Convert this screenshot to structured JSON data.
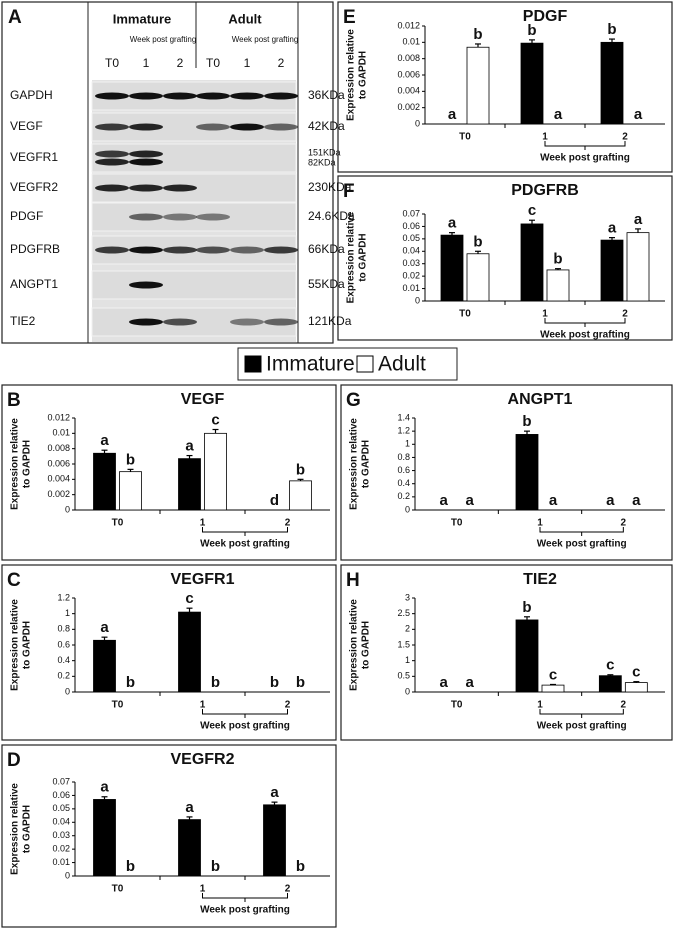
{
  "blot": {
    "panel": "A",
    "groups": [
      "Immature",
      "Adult"
    ],
    "week_label": "Week post grafting",
    "lanes": [
      "T0",
      "1",
      "2",
      "T0",
      "1",
      "2"
    ],
    "rows": [
      {
        "protein": "GAPDH",
        "size": [
          "36KDa"
        ]
      },
      {
        "protein": "VEGF",
        "size": [
          "42KDa"
        ]
      },
      {
        "protein": "VEGFR1",
        "size": [
          "151KDa",
          "82KDa"
        ]
      },
      {
        "protein": "VEGFR2",
        "size": [
          "230KDa"
        ]
      },
      {
        "protein": "PDGF",
        "size": [
          "24.6KDa"
        ]
      },
      {
        "protein": "PDGFRB",
        "size": [
          "66KDa"
        ]
      },
      {
        "protein": "ANGPT1",
        "size": [
          "55KDa"
        ]
      },
      {
        "protein": "TIE2",
        "size": [
          "121KDa"
        ]
      }
    ]
  },
  "legend": [
    {
      "name": "Immature",
      "color": "#000000"
    },
    {
      "name": "Adult",
      "color": "#ffffff"
    }
  ],
  "chart_data": [
    {
      "type": "bar",
      "panel": "B",
      "title": "VEGF",
      "ylabel": [
        "Expression relative",
        "to GAPDH"
      ],
      "xlabel": "Week post grafting",
      "categories": [
        "T0",
        "1",
        "2"
      ],
      "ylim": [
        0,
        0.012
      ],
      "yticks": [
        0,
        0.002,
        0.004,
        0.006,
        0.008,
        0.01,
        0.012
      ],
      "series": [
        {
          "values": [
            0.0074,
            0.0067,
            0
          ],
          "errors": [
            0.0004,
            0.0004,
            0
          ],
          "letters": [
            "a",
            "a",
            "d"
          ]
        },
        {
          "values": [
            0.005,
            0.01,
            0.0038
          ],
          "errors": [
            0.0003,
            0.0005,
            0.0002
          ],
          "letters": [
            "b",
            "c",
            "b"
          ]
        }
      ]
    },
    {
      "type": "bar",
      "panel": "C",
      "title": "VEGFR1",
      "ylabel": [
        "Expression relative",
        "to GAPDH"
      ],
      "xlabel": "Week post grafting",
      "categories": [
        "T0",
        "1",
        "2"
      ],
      "ylim": [
        0,
        1.2
      ],
      "yticks": [
        0,
        0.2,
        0.4,
        0.6,
        0.8,
        1,
        1.2
      ],
      "series": [
        {
          "values": [
            0.66,
            1.02,
            0
          ],
          "errors": [
            0.04,
            0.05,
            0
          ],
          "letters": [
            "a",
            "c",
            "b"
          ]
        },
        {
          "values": [
            0,
            0,
            0
          ],
          "errors": [
            0,
            0,
            0
          ],
          "letters": [
            "b",
            "b",
            "b"
          ]
        }
      ]
    },
    {
      "type": "bar",
      "panel": "D",
      "title": "VEGFR2",
      "ylabel": [
        "Expression relative",
        "to GAPDH"
      ],
      "xlabel": "Week post grafting",
      "categories": [
        "T0",
        "1",
        "2"
      ],
      "ylim": [
        0,
        0.07
      ],
      "yticks": [
        0,
        0.01,
        0.02,
        0.03,
        0.04,
        0.05,
        0.06,
        0.07
      ],
      "series": [
        {
          "values": [
            0.057,
            0.042,
            0.053
          ],
          "errors": [
            0.002,
            0.002,
            0.002
          ],
          "letters": [
            "a",
            "a",
            "a"
          ]
        },
        {
          "values": [
            0,
            0,
            0
          ],
          "errors": [
            0,
            0,
            0
          ],
          "letters": [
            "b",
            "b",
            "b"
          ]
        }
      ]
    },
    {
      "type": "bar",
      "panel": "E",
      "title": "PDGF",
      "ylabel": [
        "Expression relative",
        "to GAPDH"
      ],
      "xlabel": "Week post grafting",
      "categories": [
        "T0",
        "1",
        "2"
      ],
      "ylim": [
        0,
        0.012
      ],
      "yticks": [
        0,
        0.002,
        0.004,
        0.006,
        0.008,
        0.01,
        0.012
      ],
      "series": [
        {
          "values": [
            0,
            0.0099,
            0.01
          ],
          "errors": [
            0,
            0.0004,
            0.0004
          ],
          "letters": [
            "a",
            "b",
            "b"
          ]
        },
        {
          "values": [
            0.0094,
            0,
            0
          ],
          "errors": [
            0.0004,
            0,
            0
          ],
          "letters": [
            "b",
            "a",
            "a"
          ]
        }
      ]
    },
    {
      "type": "bar",
      "panel": "F",
      "title": "PDGFRB",
      "ylabel": [
        "Expression relative",
        "to GAPDH"
      ],
      "xlabel": "Week post grafting",
      "categories": [
        "T0",
        "1",
        "2"
      ],
      "ylim": [
        0,
        0.07
      ],
      "yticks": [
        0,
        0.01,
        0.02,
        0.03,
        0.04,
        0.05,
        0.06,
        0.07
      ],
      "series": [
        {
          "values": [
            0.053,
            0.062,
            0.049
          ],
          "errors": [
            0.002,
            0.003,
            0.002
          ],
          "letters": [
            "a",
            "c",
            "a"
          ]
        },
        {
          "values": [
            0.038,
            0.025,
            0.055
          ],
          "errors": [
            0.002,
            0.001,
            0.003
          ],
          "letters": [
            "b",
            "b",
            "a"
          ]
        }
      ]
    },
    {
      "type": "bar",
      "panel": "G",
      "title": "ANGPT1",
      "ylabel": [
        "Expression relative",
        "to GAPDH"
      ],
      "xlabel": "Week post grafting",
      "categories": [
        "T0",
        "1",
        "2"
      ],
      "ylim": [
        0,
        1.4
      ],
      "yticks": [
        0,
        0.2,
        0.4,
        0.6,
        0.8,
        1,
        1.2,
        1.4
      ],
      "series": [
        {
          "values": [
            0,
            1.15,
            0
          ],
          "errors": [
            0,
            0.05,
            0
          ],
          "letters": [
            "a",
            "b",
            "a"
          ]
        },
        {
          "values": [
            0,
            0,
            0
          ],
          "errors": [
            0,
            0,
            0
          ],
          "letters": [
            "a",
            "a",
            "a"
          ]
        }
      ]
    },
    {
      "type": "bar",
      "panel": "H",
      "title": "TIE2",
      "ylabel": [
        "Expression relative",
        "to GAPDH"
      ],
      "xlabel": "Week post grafting",
      "categories": [
        "T0",
        "1",
        "2"
      ],
      "ylim": [
        0,
        3
      ],
      "yticks": [
        0,
        0.5,
        1,
        1.5,
        2,
        2.5,
        3
      ],
      "series": [
        {
          "values": [
            0,
            2.3,
            0.52
          ],
          "errors": [
            0,
            0.1,
            0.03
          ],
          "letters": [
            "a",
            "b",
            "c"
          ]
        },
        {
          "values": [
            0,
            0.22,
            0.3
          ],
          "errors": [
            0,
            0.02,
            0.03
          ],
          "letters": [
            "a",
            "c",
            "c"
          ]
        }
      ]
    }
  ]
}
